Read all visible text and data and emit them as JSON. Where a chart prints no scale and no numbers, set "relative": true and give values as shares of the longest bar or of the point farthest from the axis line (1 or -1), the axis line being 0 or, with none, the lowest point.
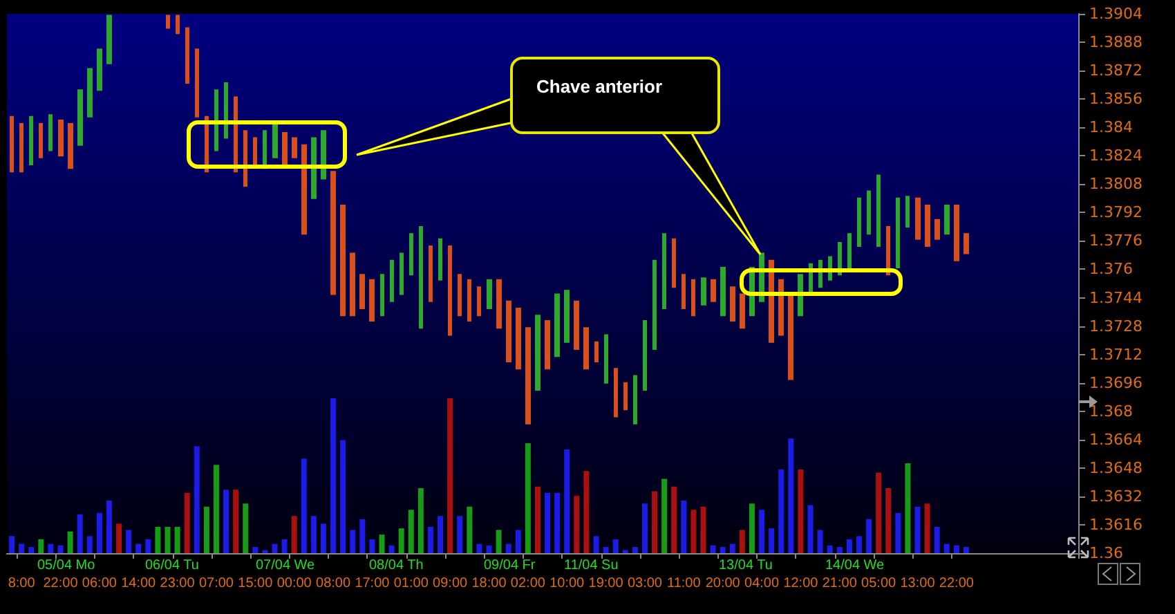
{
  "chart_data": [
    {
      "type": "candlestick",
      "categories": [
        null,
        "8:00",
        null,
        null,
        null,
        "22:00",
        null,
        null,
        null,
        "06:00",
        null,
        null,
        null,
        "14:00",
        null,
        null,
        null,
        "23:00",
        null,
        null,
        null,
        "07:00",
        null,
        null,
        null,
        "15:00",
        null,
        null,
        null,
        "00:00",
        null,
        null,
        null,
        "08:00",
        null,
        null,
        null,
        "17:00",
        null,
        null,
        null,
        "01:00",
        null,
        null,
        null,
        "09:00",
        null,
        null,
        null,
        "18:00",
        null,
        null,
        null,
        "02:00",
        null,
        null,
        null,
        "10:00",
        null,
        null,
        null,
        "19:00",
        null,
        null,
        null,
        "03:00",
        null,
        null,
        null,
        "11:00",
        null,
        null,
        null,
        "20:00",
        null,
        null,
        null,
        "04:00",
        null,
        null,
        null,
        "12:00",
        null,
        null,
        null,
        "21:00",
        null,
        null,
        null,
        "05:00",
        null,
        null,
        null,
        "13:00",
        null,
        null,
        null,
        "22:00",
        null,
        null,
        null,
        null,
        null,
        null,
        null,
        null,
        null,
        null,
        null,
        null
      ],
      "ohlc": [
        [
          1.3846,
          1.3846,
          1.3815,
          1.3815
        ],
        [
          1.3842,
          1.3842,
          1.3815,
          1.3815
        ],
        [
          1.3819,
          1.3846,
          1.3819,
          1.3846
        ],
        [
          1.3842,
          1.3842,
          1.3823,
          1.3823
        ],
        [
          1.3827,
          1.3847,
          1.3827,
          1.3847
        ],
        [
          1.3844,
          1.3844,
          1.3824,
          1.3824
        ],
        [
          1.3842,
          1.3842,
          1.3817,
          1.3817
        ],
        [
          1.383,
          1.3861,
          1.383,
          1.3861
        ],
        [
          1.3846,
          1.3873,
          1.3846,
          1.3873
        ],
        [
          1.3861,
          1.3884,
          1.3861,
          1.3884
        ],
        [
          1.3876,
          1.3903,
          1.3876,
          1.3903
        ],
        null,
        null,
        null,
        null,
        null,
        [
          1.3903,
          1.3903,
          1.3896,
          1.3896
        ],
        [
          1.3903,
          1.3903,
          1.3893,
          1.3893
        ],
        [
          1.3896,
          1.3896,
          1.3865,
          1.3865
        ],
        [
          1.3884,
          1.3884,
          1.3846,
          1.3846
        ],
        [
          1.3846,
          1.3846,
          1.3815,
          1.3815
        ],
        [
          1.3827,
          1.3861,
          1.3827,
          1.3861
        ],
        [
          1.3834,
          1.3865,
          1.3834,
          1.3865
        ],
        [
          1.3857,
          1.3857,
          1.3815,
          1.3815
        ],
        [
          1.3838,
          1.3838,
          1.3807,
          1.3807
        ],
        [
          1.3834,
          1.3834,
          1.3819,
          1.3819
        ],
        [
          1.3817,
          1.3838,
          1.3817,
          1.3838
        ],
        [
          1.3823,
          1.3842,
          1.3823,
          1.3842
        ],
        [
          1.3837,
          1.3837,
          1.3819,
          1.3819
        ],
        [
          1.3834,
          1.3834,
          1.3823,
          1.3823
        ],
        [
          1.383,
          1.383,
          1.378,
          1.378
        ],
        [
          1.38,
          1.3834,
          1.38,
          1.3834
        ],
        [
          1.3811,
          1.3838,
          1.3811,
          1.3838
        ],
        [
          1.3815,
          1.3815,
          1.3746,
          1.3746
        ],
        [
          1.3796,
          1.3796,
          1.3734,
          1.3734
        ],
        [
          1.3769,
          1.3769,
          1.3734,
          1.3734
        ],
        [
          1.3757,
          1.3757,
          1.3738,
          1.3738
        ],
        [
          1.3754,
          1.3754,
          1.3731,
          1.3731
        ],
        [
          1.3734,
          1.3757,
          1.3734,
          1.3757
        ],
        [
          1.3742,
          1.3765,
          1.3742,
          1.3765
        ],
        [
          1.3746,
          1.3769,
          1.3746,
          1.3769
        ],
        [
          1.3757,
          1.378,
          1.3757,
          1.378
        ],
        [
          1.3727,
          1.3784,
          1.3727,
          1.3784
        ],
        [
          1.3773,
          1.3773,
          1.3742,
          1.3742
        ],
        [
          1.3754,
          1.3777,
          1.3754,
          1.3777
        ],
        [
          1.3773,
          1.3773,
          1.3723,
          1.3723
        ],
        [
          1.3757,
          1.3757,
          1.3734,
          1.3734
        ],
        [
          1.3754,
          1.3754,
          1.3731,
          1.3731
        ],
        [
          1.375,
          1.375,
          1.3734,
          1.3734
        ],
        [
          1.3738,
          1.3754,
          1.3738,
          1.3754
        ],
        [
          1.3754,
          1.3754,
          1.3727,
          1.3727
        ],
        [
          1.3742,
          1.3742,
          1.3708,
          1.3708
        ],
        [
          1.3738,
          1.3738,
          1.3704,
          1.3704
        ],
        [
          1.3727,
          1.3727,
          1.3673,
          1.3673
        ],
        [
          1.3692,
          1.3734,
          1.3692,
          1.3734
        ],
        [
          1.3731,
          1.3731,
          1.3704,
          1.3704
        ],
        [
          1.3711,
          1.3746,
          1.3711,
          1.3746
        ],
        [
          1.3719,
          1.3748,
          1.3719,
          1.3748
        ],
        [
          1.3742,
          1.3742,
          1.3715,
          1.3715
        ],
        [
          1.3727,
          1.3727,
          1.3704,
          1.3704
        ],
        [
          1.3719,
          1.3719,
          1.3708,
          1.3708
        ],
        [
          1.3696,
          1.3723,
          1.3696,
          1.3723
        ],
        [
          1.3704,
          1.3704,
          1.3677,
          1.3677
        ],
        [
          1.3696,
          1.3696,
          1.3681,
          1.3681
        ],
        [
          1.3673,
          1.37,
          1.3673,
          1.37
        ],
        [
          1.3692,
          1.3731,
          1.3692,
          1.3731
        ],
        [
          1.3715,
          1.3765,
          1.3715,
          1.3765
        ],
        [
          1.3738,
          1.378,
          1.3738,
          1.378
        ],
        [
          1.3777,
          1.3777,
          1.375,
          1.375
        ],
        [
          1.3757,
          1.3757,
          1.3738,
          1.3738
        ],
        [
          1.3754,
          1.3754,
          1.3734,
          1.3734
        ],
        [
          1.374,
          1.3755,
          1.374,
          1.3755
        ],
        [
          1.3754,
          1.3754,
          1.3742,
          1.3742
        ],
        [
          1.3734,
          1.3761,
          1.3734,
          1.3761
        ],
        [
          1.375,
          1.375,
          1.3731,
          1.3731
        ],
        [
          1.3746,
          1.3746,
          1.3727,
          1.3727
        ],
        [
          1.3734,
          1.3761,
          1.3734,
          1.3761
        ],
        [
          1.3742,
          1.3769,
          1.3742,
          1.3769
        ],
        [
          1.3765,
          1.3765,
          1.3719,
          1.3719
        ],
        [
          1.3754,
          1.3754,
          1.3723,
          1.3723
        ],
        [
          1.3746,
          1.3746,
          1.3698,
          1.3698
        ],
        [
          1.3734,
          1.3757,
          1.3734,
          1.3757
        ],
        [
          1.3746,
          1.3763,
          1.3746,
          1.3763
        ],
        [
          1.375,
          1.3765,
          1.375,
          1.3765
        ],
        [
          1.3754,
          1.3767,
          1.3754,
          1.3767
        ],
        [
          1.3757,
          1.3775,
          1.3757,
          1.3775
        ],
        [
          1.3761,
          1.378,
          1.3761,
          1.378
        ],
        [
          1.3773,
          1.38,
          1.3773,
          1.38
        ],
        [
          1.378,
          1.3804,
          1.378,
          1.3804
        ],
        [
          1.3773,
          1.3813,
          1.3773,
          1.3813
        ],
        [
          1.3784,
          1.3784,
          1.3757,
          1.3757
        ],
        [
          1.3761,
          1.38,
          1.3761,
          1.38
        ],
        [
          1.3784,
          1.3801,
          1.3784,
          1.3801
        ],
        [
          1.38,
          1.38,
          1.3777,
          1.3777
        ],
        [
          1.3796,
          1.3796,
          1.3773,
          1.3773
        ],
        [
          1.3788,
          1.3788,
          1.3777,
          1.3777
        ],
        [
          1.378,
          1.3796,
          1.378,
          1.3796
        ],
        [
          1.3796,
          1.3796,
          1.3765,
          1.3765
        ],
        [
          1.378,
          1.378,
          1.3769,
          1.3769
        ],
        null,
        null,
        null,
        null,
        null,
        null,
        null,
        null,
        null,
        null,
        null
      ],
      "ylim": [
        1.36,
        1.3904
      ],
      "yticks": [
        1.36,
        1.3616,
        1.3632,
        1.3648,
        1.3664,
        1.368,
        1.3696,
        1.3712,
        1.3728,
        1.3744,
        1.376,
        1.3776,
        1.3792,
        1.3808,
        1.3824,
        1.384,
        1.3856,
        1.3872,
        1.3888,
        1.3904
      ],
      "annotations": [
        "Chave anterior",
        "05/04 Mo",
        "06/04 Tu",
        "07/04 We",
        "08/04 Th",
        "09/04 Fr",
        "11/04 Su",
        "13/04 Tu",
        "14/04 We"
      ]
    },
    {
      "type": "bar",
      "relative": true,
      "categories": [
        null,
        null,
        null,
        null,
        null,
        null,
        null,
        null,
        null,
        null,
        null,
        null,
        null,
        null,
        null,
        null,
        null,
        null,
        null,
        null,
        null,
        null,
        null,
        null,
        null,
        null,
        null,
        null,
        null,
        null,
        null,
        null,
        null,
        null,
        null,
        null,
        null,
        null,
        null,
        null,
        null,
        null,
        null,
        null,
        null,
        null,
        null,
        null,
        null,
        null,
        null,
        null,
        null,
        null,
        null,
        null,
        null,
        null,
        null,
        null,
        null,
        null,
        null,
        null,
        null,
        null,
        null,
        null,
        null,
        null,
        null,
        null,
        null,
        null,
        null,
        null,
        null,
        null,
        null,
        null,
        null,
        null,
        null,
        null,
        null,
        null,
        null,
        null,
        null,
        null,
        null,
        null,
        null,
        null,
        null,
        null,
        null,
        null,
        null,
        null,
        null,
        null,
        null,
        null,
        null,
        null,
        null,
        null,
        null,
        null
      ],
      "values": [
        0.11,
        0.06,
        0.04,
        0.09,
        0.06,
        0.05,
        0.14,
        0.25,
        0.11,
        0.26,
        0.34,
        0.19,
        0.15,
        0.06,
        0.09,
        0.17,
        0.17,
        0.17,
        0.39,
        0.69,
        0.3,
        0.57,
        0.41,
        0.41,
        0.32,
        0.04,
        0.02,
        0.06,
        0.09,
        0.24,
        0.61,
        0.24,
        0.19,
        1,
        0.73,
        0.15,
        0.22,
        0.09,
        0.12,
        0.05,
        0.16,
        0.28,
        0.42,
        0.17,
        0.24,
        1,
        0.24,
        0.3,
        0.06,
        0.05,
        0.15,
        0.06,
        0.15,
        0.71,
        0.43,
        0.39,
        0.39,
        0.67,
        0.37,
        0.53,
        0.11,
        0.04,
        0.09,
        0.02,
        0.04,
        0.32,
        0.4,
        0.48,
        0.43,
        0.34,
        0.28,
        0.3,
        0.05,
        0.04,
        0.06,
        0.15,
        0.32,
        0.28,
        0.16,
        0.54,
        0.74,
        0.54,
        0.31,
        0.15,
        0.05,
        0.04,
        0.09,
        0.11,
        0.22,
        0.52,
        0.42,
        0.26,
        0.58,
        0.3,
        0.32,
        0.17,
        0.06,
        0.05,
        0.04,
        null,
        null,
        null,
        null,
        null,
        null,
        null,
        null,
        null,
        null,
        null
      ],
      "colors": [
        "#1c1ce6",
        "#1c1ce6",
        "#1c1ce6",
        "#169c16",
        "#1c1ce6",
        "#1c1ce6",
        "#169c16",
        "#1c1ce6",
        "#1c1ce6",
        "#1c1ce6",
        "#1c1ce6",
        "#aa1010",
        "#1c1ce6",
        "#1c1ce6",
        "#1c1ce6",
        "#169c16",
        "#169c16",
        "#169c16",
        "#aa1010",
        "#1c1ce6",
        "#169c16",
        "#169c16",
        "#1c1ce6",
        "#aa1010",
        "#169c16",
        "#1c1ce6",
        "#1c1ce6",
        "#1c1ce6",
        "#1c1ce6",
        "#aa1010",
        "#1c1ce6",
        "#1c1ce6",
        "#1c1ce6",
        "#1c1ce6",
        "#1c1ce6",
        "#1c1ce6",
        "#1c1ce6",
        "#1c1ce6",
        "#169c16",
        "#1c1ce6",
        "#169c16",
        "#169c16",
        "#169c16",
        "#1c1ce6",
        "#1c1ce6",
        "#aa1010",
        "#1c1ce6",
        "#169c16",
        "#1c1ce6",
        "#1c1ce6",
        "#169c16",
        "#1c1ce6",
        "#1c1ce6",
        "#169c16",
        "#aa1010",
        "#1c1ce6",
        "#1c1ce6",
        "#1c1ce6",
        "#aa1010",
        "#aa1010",
        "#1c1ce6",
        "#1c1ce6",
        "#1c1ce6",
        "#1c1ce6",
        "#1c1ce6",
        "#1c1ce6",
        "#aa1010",
        "#169c16",
        "#aa1010",
        "#1c1ce6",
        "#aa1010",
        "#aa1010",
        "#1c1ce6",
        "#1c1ce6",
        "#1c1ce6",
        "#aa1010",
        "#169c16",
        "#1c1ce6",
        "#1c1ce6",
        "#1c1ce6",
        "#1c1ce6",
        "#aa1010",
        "#1c1ce6",
        "#1c1ce6",
        "#1c1ce6",
        "#1c1ce6",
        "#1c1ce6",
        "#1c1ce6",
        "#1c1ce6",
        "#aa1010",
        "#aa1010",
        "#1c1ce6",
        "#169c16",
        "#1c1ce6",
        "#aa1010",
        "#1c1ce6",
        "#1c1ce6",
        "#1c1ce6",
        "#1c1ce6",
        null,
        null,
        null,
        null,
        null,
        null,
        null,
        null,
        null,
        null,
        null
      ]
    }
  ]
}
